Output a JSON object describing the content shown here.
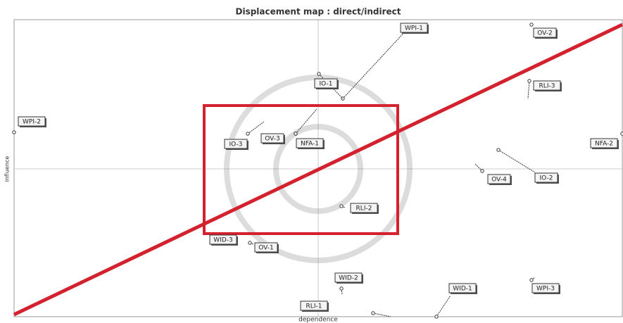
{
  "header": {
    "title": "Displacement map : direct/indirect"
  },
  "axes": {
    "x_label": "dependence",
    "y_label": "influence"
  },
  "nodes": [
    {
      "label": "WPI-1"
    },
    {
      "label": "OV-2"
    },
    {
      "label": "IO-1"
    },
    {
      "label": "RLI-3"
    },
    {
      "label": "WPI-2"
    },
    {
      "label": "IO-3"
    },
    {
      "label": "OV-3"
    },
    {
      "label": "NFA-1"
    },
    {
      "label": "NFA-2"
    },
    {
      "label": "OV-4"
    },
    {
      "label": "IO-2"
    },
    {
      "label": "RLI-2"
    },
    {
      "label": "WID-3"
    },
    {
      "label": "OV-1"
    },
    {
      "label": "WID-2"
    },
    {
      "label": "WID-1"
    },
    {
      "label": "WPI-3"
    },
    {
      "label": "RLI-1"
    }
  ]
}
